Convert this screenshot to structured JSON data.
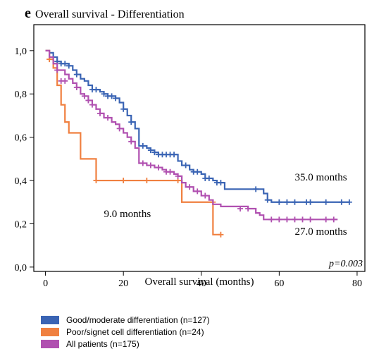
{
  "chart_data": {
    "type": "line",
    "panel_letter": "e",
    "title": "Overall survival - Differentiation",
    "xlabel": "Overall survival (months)",
    "ylabel": "",
    "xlim": [
      -3,
      82
    ],
    "ylim": [
      -0.02,
      1.12
    ],
    "xticks": [
      0,
      20,
      40,
      60,
      80
    ],
    "xtick_labels": [
      "0",
      "20",
      "40",
      "60",
      "80"
    ],
    "yticks": [
      0.0,
      0.2,
      0.4,
      0.6,
      0.8,
      1.0
    ],
    "ytick_labels": [
      "0,0",
      "0,2",
      "0,4",
      "0,6",
      "0,8",
      "1,0"
    ],
    "grid": false,
    "legend_position": "bottom",
    "p_value": "p=0.003",
    "annotations": [
      {
        "text": "35.0 months",
        "x": 64,
        "y": 0.4
      },
      {
        "text": "9.0 months",
        "x": 15,
        "y": 0.23
      },
      {
        "text": "27.0 months",
        "x": 64,
        "y": 0.15
      }
    ],
    "series": [
      {
        "name": "Good/moderate differentiation (n=127)",
        "color": "#3a64b4",
        "steps": [
          [
            0,
            1.0
          ],
          [
            1,
            0.99
          ],
          [
            2,
            0.97
          ],
          [
            3,
            0.95
          ],
          [
            4,
            0.94
          ],
          [
            6,
            0.93
          ],
          [
            7,
            0.91
          ],
          [
            8,
            0.89
          ],
          [
            9,
            0.87
          ],
          [
            10,
            0.86
          ],
          [
            11,
            0.84
          ],
          [
            12,
            0.82
          ],
          [
            14,
            0.81
          ],
          [
            15,
            0.8
          ],
          [
            16,
            0.79
          ],
          [
            18,
            0.78
          ],
          [
            19,
            0.76
          ],
          [
            20,
            0.73
          ],
          [
            21,
            0.7
          ],
          [
            22,
            0.67
          ],
          [
            23,
            0.64
          ],
          [
            24,
            0.56
          ],
          [
            26,
            0.55
          ],
          [
            27,
            0.54
          ],
          [
            28,
            0.53
          ],
          [
            29,
            0.52
          ],
          [
            34,
            0.49
          ],
          [
            35,
            0.47
          ],
          [
            37,
            0.45
          ],
          [
            38,
            0.44
          ],
          [
            40,
            0.43
          ],
          [
            41,
            0.41
          ],
          [
            43,
            0.4
          ],
          [
            44,
            0.39
          ],
          [
            46,
            0.36
          ],
          [
            55,
            0.36
          ],
          [
            56,
            0.34
          ],
          [
            57,
            0.31
          ],
          [
            58,
            0.3
          ],
          [
            78,
            0.3
          ]
        ],
        "censored": [
          [
            3,
            0.95
          ],
          [
            4,
            0.94
          ],
          [
            5,
            0.94
          ],
          [
            6,
            0.93
          ],
          [
            8,
            0.89
          ],
          [
            12,
            0.82
          ],
          [
            13,
            0.82
          ],
          [
            15,
            0.8
          ],
          [
            16,
            0.79
          ],
          [
            17,
            0.79
          ],
          [
            18,
            0.78
          ],
          [
            20,
            0.73
          ],
          [
            22,
            0.67
          ],
          [
            25,
            0.56
          ],
          [
            27,
            0.54
          ],
          [
            28,
            0.53
          ],
          [
            29,
            0.52
          ],
          [
            30,
            0.52
          ],
          [
            31,
            0.52
          ],
          [
            32,
            0.52
          ],
          [
            33,
            0.52
          ],
          [
            36,
            0.47
          ],
          [
            38,
            0.44
          ],
          [
            39,
            0.44
          ],
          [
            41,
            0.41
          ],
          [
            42,
            0.41
          ],
          [
            44,
            0.39
          ],
          [
            45,
            0.39
          ],
          [
            54,
            0.36
          ],
          [
            57,
            0.31
          ],
          [
            60,
            0.3
          ],
          [
            62,
            0.3
          ],
          [
            64,
            0.3
          ],
          [
            67,
            0.3
          ],
          [
            68,
            0.3
          ],
          [
            72,
            0.3
          ],
          [
            76,
            0.3
          ],
          [
            78,
            0.3
          ]
        ]
      },
      {
        "name": "Poor/signet cell differentiation (n=24)",
        "color": "#f08040",
        "steps": [
          [
            0,
            1.0
          ],
          [
            1,
            0.96
          ],
          [
            2,
            0.92
          ],
          [
            3,
            0.84
          ],
          [
            4,
            0.75
          ],
          [
            5,
            0.67
          ],
          [
            6,
            0.62
          ],
          [
            9,
            0.5
          ],
          [
            13,
            0.4
          ],
          [
            35,
            0.3
          ],
          [
            43,
            0.15
          ],
          [
            45,
            0.15
          ]
        ],
        "censored": [
          [
            1,
            0.96
          ],
          [
            13,
            0.4
          ],
          [
            20,
            0.4
          ],
          [
            26,
            0.4
          ],
          [
            34,
            0.4
          ],
          [
            43,
            0.3
          ],
          [
            45,
            0.15
          ]
        ]
      },
      {
        "name": "All patients (n=175)",
        "color": "#b050b0",
        "steps": [
          [
            0,
            1.0
          ],
          [
            1,
            0.97
          ],
          [
            2,
            0.94
          ],
          [
            3,
            0.91
          ],
          [
            5,
            0.89
          ],
          [
            6,
            0.87
          ],
          [
            7,
            0.85
          ],
          [
            8,
            0.83
          ],
          [
            9,
            0.8
          ],
          [
            10,
            0.79
          ],
          [
            11,
            0.77
          ],
          [
            12,
            0.75
          ],
          [
            13,
            0.73
          ],
          [
            14,
            0.71
          ],
          [
            15,
            0.69
          ],
          [
            17,
            0.67
          ],
          [
            18,
            0.66
          ],
          [
            19,
            0.64
          ],
          [
            20,
            0.62
          ],
          [
            21,
            0.6
          ],
          [
            22,
            0.58
          ],
          [
            23,
            0.55
          ],
          [
            24,
            0.48
          ],
          [
            26,
            0.47
          ],
          [
            28,
            0.46
          ],
          [
            30,
            0.45
          ],
          [
            31,
            0.44
          ],
          [
            33,
            0.43
          ],
          [
            34,
            0.42
          ],
          [
            35,
            0.39
          ],
          [
            36,
            0.37
          ],
          [
            38,
            0.35
          ],
          [
            40,
            0.33
          ],
          [
            42,
            0.31
          ],
          [
            43,
            0.29
          ],
          [
            45,
            0.28
          ],
          [
            52,
            0.27
          ],
          [
            54,
            0.25
          ],
          [
            55,
            0.24
          ],
          [
            56,
            0.22
          ],
          [
            75,
            0.22
          ]
        ],
        "censored": [
          [
            3,
            0.91
          ],
          [
            4,
            0.86
          ],
          [
            5,
            0.86
          ],
          [
            8,
            0.83
          ],
          [
            10,
            0.79
          ],
          [
            11,
            0.77
          ],
          [
            12,
            0.75
          ],
          [
            14,
            0.71
          ],
          [
            16,
            0.69
          ],
          [
            19,
            0.64
          ],
          [
            22,
            0.58
          ],
          [
            25,
            0.48
          ],
          [
            27,
            0.47
          ],
          [
            29,
            0.46
          ],
          [
            31,
            0.44
          ],
          [
            32,
            0.44
          ],
          [
            34,
            0.42
          ],
          [
            37,
            0.37
          ],
          [
            39,
            0.35
          ],
          [
            41,
            0.33
          ],
          [
            50,
            0.27
          ],
          [
            52,
            0.27
          ],
          [
            58,
            0.22
          ],
          [
            60,
            0.22
          ],
          [
            62,
            0.22
          ],
          [
            64,
            0.22
          ],
          [
            66,
            0.22
          ],
          [
            68,
            0.22
          ],
          [
            72,
            0.22
          ],
          [
            74,
            0.22
          ]
        ]
      }
    ]
  }
}
